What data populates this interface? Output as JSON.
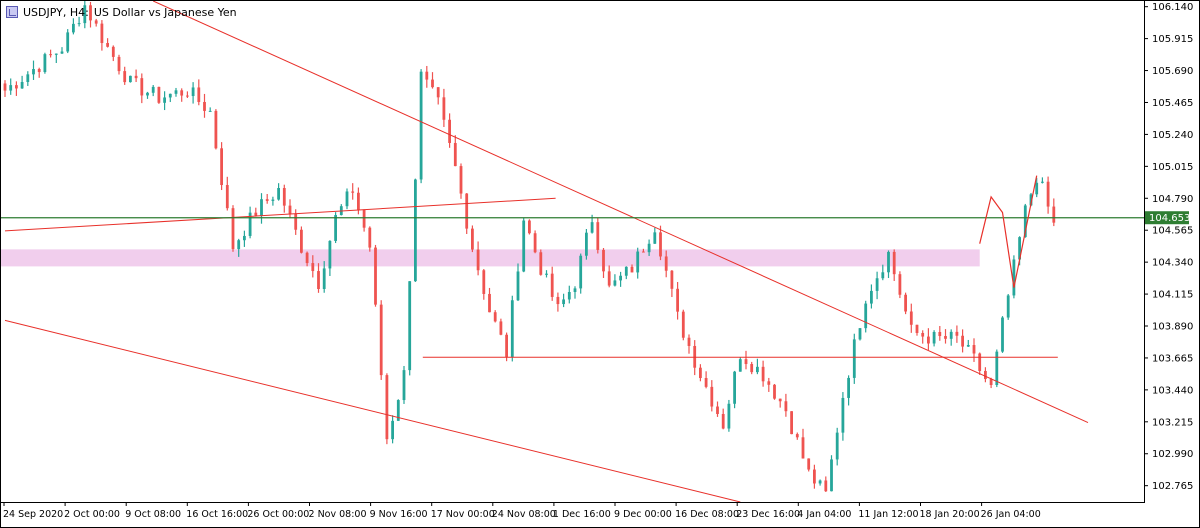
{
  "header": {
    "symbol": "USDJPY, H4:",
    "description": "US Dollar vs Japanese Yen",
    "icon": "chart-window-icon"
  },
  "chart_data": {
    "type": "candlestick",
    "symbol": "USDJPY",
    "timeframe": "H4",
    "ylim": [
      102.65,
      106.18
    ],
    "yticks": [
      "106.140",
      "105.915",
      "105.690",
      "105.465",
      "105.240",
      "105.015",
      "104.790",
      "104.565",
      "104.340",
      "104.115",
      "103.890",
      "103.665",
      "103.440",
      "103.215",
      "102.990",
      "102.765"
    ],
    "xticks": [
      "24 Sep 2020",
      "2 Oct 00:00",
      "9 Oct 08:00",
      "16 Oct 16:00",
      "26 Oct 00:00",
      "2 Nov 08:00",
      "9 Nov 16:00",
      "17 Nov 00:00",
      "24 Nov 08:00",
      "1 Dec 16:00",
      "9 Dec 00:00",
      "16 Dec 08:00",
      "23 Dec 16:00",
      "4 Jan 04:00",
      "11 Jan 12:00",
      "18 Jan 20:00",
      "26 Jan 04:00"
    ],
    "current_price": "104.653",
    "colors": {
      "bull": "#26a69a",
      "bear": "#ef5350",
      "trendline": "#e8302a",
      "price_line": "#2e7d32",
      "zone": "#eec6ea"
    },
    "price_path": [
      [
        0,
        105.55
      ],
      [
        5,
        105.7
      ],
      [
        10,
        105.85
      ],
      [
        14,
        106.15
      ],
      [
        18,
        105.85
      ],
      [
        22,
        105.6
      ],
      [
        27,
        105.5
      ],
      [
        32,
        105.55
      ],
      [
        36,
        105.4
      ],
      [
        40,
        104.45
      ],
      [
        44,
        104.7
      ],
      [
        48,
        104.85
      ],
      [
        52,
        104.45
      ],
      [
        55,
        104.2
      ],
      [
        58,
        104.65
      ],
      [
        61,
        104.85
      ],
      [
        64,
        104.45
      ],
      [
        67,
        103.1
      ],
      [
        70,
        103.55
      ],
      [
        73,
        105.65
      ],
      [
        76,
        105.45
      ],
      [
        79,
        105.0
      ],
      [
        82,
        104.45
      ],
      [
        85,
        104.0
      ],
      [
        88,
        103.7
      ],
      [
        91,
        104.65
      ],
      [
        94,
        104.3
      ],
      [
        97,
        104.0
      ],
      [
        100,
        104.2
      ],
      [
        103,
        104.65
      ],
      [
        106,
        104.15
      ],
      [
        110,
        104.3
      ],
      [
        114,
        104.6
      ],
      [
        118,
        103.95
      ],
      [
        122,
        103.55
      ],
      [
        126,
        103.2
      ],
      [
        129,
        103.7
      ],
      [
        133,
        103.55
      ],
      [
        137,
        103.3
      ],
      [
        141,
        102.85
      ],
      [
        144,
        102.7
      ],
      [
        147,
        103.4
      ],
      [
        151,
        104.1
      ],
      [
        155,
        104.4
      ],
      [
        159,
        103.85
      ],
      [
        163,
        103.8
      ],
      [
        167,
        103.8
      ],
      [
        170,
        103.65
      ],
      [
        173,
        103.45
      ],
      [
        175,
        103.9
      ],
      [
        179,
        104.7
      ],
      [
        181,
        104.95
      ],
      [
        182,
        104.85
      ],
      [
        184,
        104.6
      ]
    ],
    "annotations": [
      {
        "type": "trendline",
        "from": [
          0,
          104.56
        ],
        "to": [
          96.6,
          104.79
        ],
        "note": "clipped at top edge of plot"
      },
      {
        "type": "trendline",
        "from": [
          26,
          106.18
        ],
        "to": [
          190,
          103.21
        ]
      },
      {
        "type": "trendline",
        "from": [
          0,
          103.93
        ],
        "to": [
          129,
          102.65
        ]
      },
      {
        "type": "hline",
        "price": 103.67,
        "from_index": 74,
        "to_index": 184
      },
      {
        "type": "hline",
        "price": 104.653,
        "extends": "full-width"
      },
      {
        "type": "zone",
        "price_from": 104.31,
        "price_to": 104.43,
        "from_index": 0,
        "to_index": 171
      },
      {
        "type": "projection",
        "points": [
          [
            171,
            104.47
          ],
          [
            173,
            104.8
          ],
          [
            175,
            104.69
          ],
          [
            177,
            104.16
          ],
          [
            181,
            104.95
          ]
        ]
      }
    ]
  }
}
